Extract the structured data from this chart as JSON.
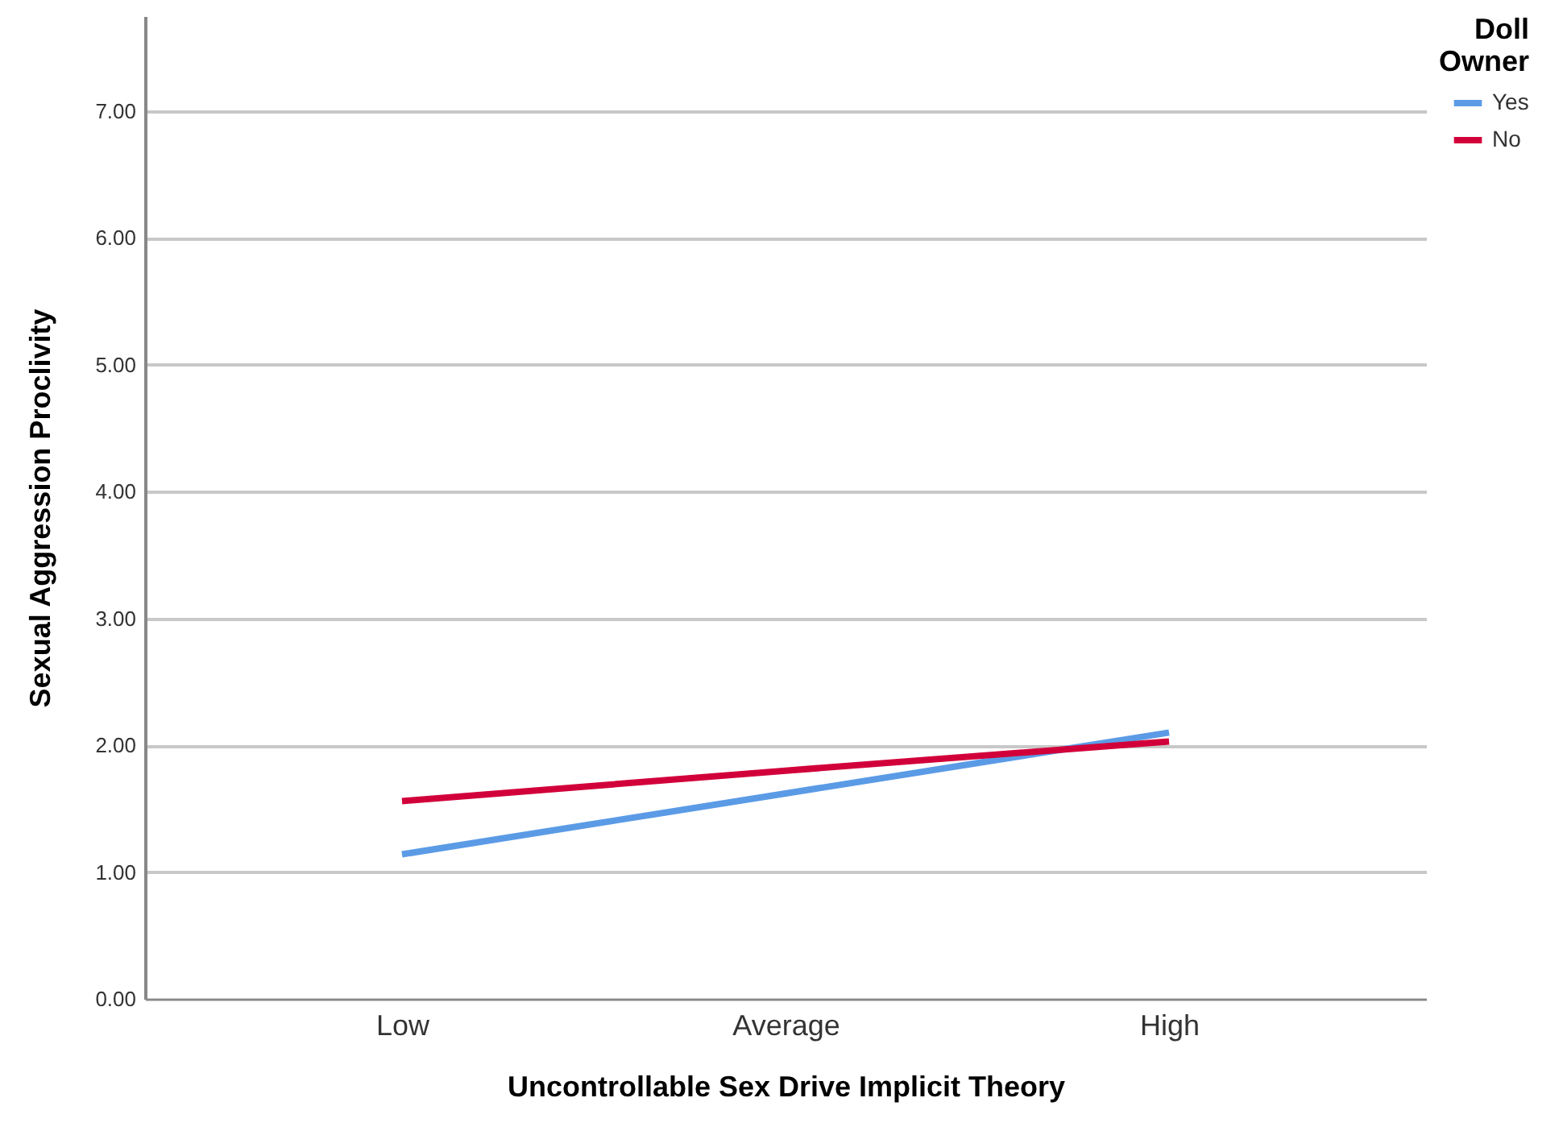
{
  "chart_data": {
    "type": "line",
    "xlabel": "Uncontrollable Sex Drive Implicit Theory",
    "ylabel": "Sexual Aggression Proclivity",
    "legend_title": "Doll Owner",
    "categories": [
      "Low",
      "Average",
      "High"
    ],
    "series": [
      {
        "name": "Yes",
        "color": "#5b9be6",
        "values": [
          1.14,
          1.62,
          2.1
        ]
      },
      {
        "name": "No",
        "color": "#d2003a",
        "values": [
          1.56,
          1.8,
          2.03
        ]
      }
    ],
    "ylim": [
      0,
      7.75
    ],
    "yticks": [
      {
        "value": 0,
        "label": "0.00"
      },
      {
        "value": 1,
        "label": "1.00"
      },
      {
        "value": 2,
        "label": "2.00"
      },
      {
        "value": 3,
        "label": "3.00"
      },
      {
        "value": 4,
        "label": "4.00"
      },
      {
        "value": 5,
        "label": "5.00"
      },
      {
        "value": 6,
        "label": "6.00"
      },
      {
        "value": 7,
        "label": "7.00"
      }
    ],
    "grid": "y",
    "legend": "top right",
    "marker": "none",
    "line_style": "solid"
  }
}
